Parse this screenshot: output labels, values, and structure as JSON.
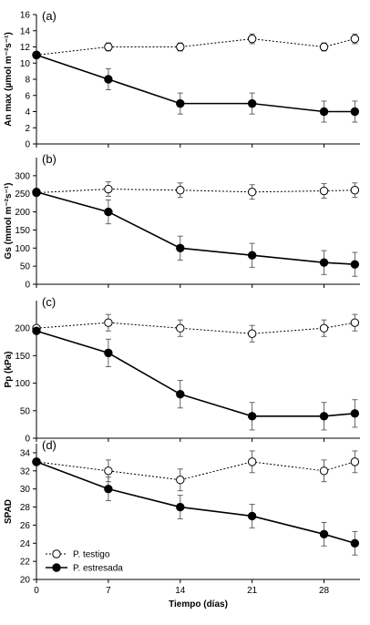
{
  "chart_data": [
    {
      "type": "line",
      "panel": "(a)",
      "ylabel": "An max (µmol m⁻²s⁻¹)",
      "ylim": [
        0,
        16
      ],
      "yticks": [
        0,
        2,
        4,
        6,
        8,
        10,
        12,
        14,
        16
      ],
      "x": [
        0,
        7,
        14,
        21,
        28,
        31
      ],
      "series": [
        {
          "name": "P. testigo",
          "values": [
            11,
            12,
            12,
            13,
            12,
            13
          ],
          "errors": [
            0.3,
            0.5,
            0.5,
            0.6,
            0.5,
            0.6
          ]
        },
        {
          "name": "P. estresada",
          "values": [
            11,
            8,
            5,
            5,
            4,
            4
          ],
          "errors": [
            0.3,
            1.3,
            1.3,
            1.3,
            1.3,
            1.3
          ]
        }
      ]
    },
    {
      "type": "line",
      "panel": "(b)",
      "ylabel": "Gs (mmol m⁻²s⁻¹)",
      "ylim": [
        0,
        350
      ],
      "yticks": [
        0,
        50,
        100,
        150,
        200,
        250,
        300
      ],
      "x": [
        0,
        7,
        14,
        21,
        28,
        31
      ],
      "series": [
        {
          "name": "P. testigo",
          "values": [
            253,
            263,
            260,
            255,
            258,
            260
          ],
          "errors": [
            5,
            20,
            20,
            20,
            20,
            20
          ]
        },
        {
          "name": "P. estresada",
          "values": [
            255,
            200,
            100,
            80,
            60,
            55
          ],
          "errors": [
            5,
            33,
            33,
            33,
            33,
            33
          ]
        }
      ]
    },
    {
      "type": "line",
      "panel": "(c)",
      "ylabel": "Pp (kPa)",
      "ylim": [
        0,
        250
      ],
      "yticks": [
        0,
        50,
        100,
        150,
        200
      ],
      "x": [
        0,
        7,
        14,
        21,
        28,
        31
      ],
      "series": [
        {
          "name": "P. testigo",
          "values": [
            200,
            210,
            200,
            190,
            200,
            210
          ],
          "errors": [
            5,
            15,
            15,
            15,
            15,
            15
          ]
        },
        {
          "name": "P. estresada",
          "values": [
            195,
            155,
            80,
            40,
            40,
            45
          ],
          "errors": [
            5,
            25,
            25,
            25,
            25,
            25
          ]
        }
      ]
    },
    {
      "type": "line",
      "panel": "(d)",
      "ylabel": "SPAD",
      "ylim": [
        20,
        35
      ],
      "yticks": [
        20,
        22,
        24,
        26,
        28,
        30,
        32,
        34
      ],
      "x": [
        0,
        7,
        14,
        21,
        28,
        31
      ],
      "xlabel": "Tiempo (días)",
      "xticks": [
        0,
        7,
        14,
        21,
        28
      ],
      "legend_position": "bottom-left",
      "series": [
        {
          "name": "P. testigo",
          "values": [
            33,
            32,
            31,
            33,
            32,
            33
          ],
          "errors": [
            0.3,
            1.2,
            1.2,
            1.2,
            1.2,
            1.2
          ]
        },
        {
          "name": "P. estresada",
          "values": [
            33,
            30,
            28,
            27,
            25,
            24
          ],
          "errors": [
            0.3,
            1.3,
            1.3,
            1.3,
            1.3,
            1.3
          ]
        }
      ]
    }
  ],
  "legend": {
    "testigo_label": "P. testigo",
    "estresada_label": "P. estresada"
  }
}
